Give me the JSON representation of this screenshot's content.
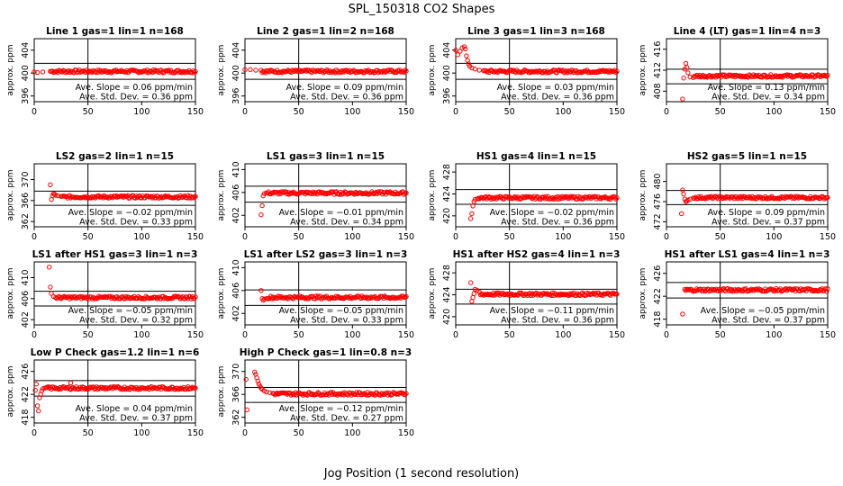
{
  "figure": {
    "title": "SPL_150318  CO2 Shapes",
    "xlabel": "Jog Position (1 second resolution)",
    "ylabel": "approx. ppm",
    "colors": {
      "points": "#ff0000",
      "frame": "#000000"
    }
  },
  "chart_data": [
    {
      "type": "scatter",
      "title": "Line 1 gas=1 lin=1 n=168",
      "xlim": [
        0,
        150
      ],
      "ylim": [
        395,
        406
      ],
      "xticks": [
        0,
        50,
        100,
        150
      ],
      "yticks": [
        396,
        400,
        404
      ],
      "hlines": [
        401.7,
        398.9
      ],
      "vline": 50,
      "series": [
        {
          "type": "scatter",
          "points": [
            [
              0,
              400.2
            ],
            [
              3,
              400.1
            ],
            [
              8,
              400.2
            ],
            [
              15,
              400.3
            ]
          ],
          "flat": {
            "from": 16,
            "to": 150,
            "y": 400.3
          }
        }
      ],
      "stats": [
        "Ave. Slope =  0.06  ppm/min",
        "Ave. Std. Dev. =  0.36  ppm"
      ]
    },
    {
      "type": "scatter",
      "title": "Line 2 gas=1 lin=2 n=168",
      "xlim": [
        0,
        150
      ],
      "ylim": [
        395,
        406
      ],
      "xticks": [
        0,
        50,
        100,
        150
      ],
      "yticks": [
        396,
        400,
        404
      ],
      "hlines": [
        401.7,
        398.9
      ],
      "vline": 50,
      "series": [
        {
          "type": "scatter",
          "points": [
            [
              0,
              400.6
            ],
            [
              5,
              400.6
            ],
            [
              10,
              400.5
            ],
            [
              15,
              400.5
            ]
          ],
          "flat": {
            "from": 16,
            "to": 150,
            "y": 400.3
          }
        }
      ],
      "stats": [
        "Ave. Slope =  0.09  ppm/min",
        "Ave. Std. Dev. =  0.36  ppm"
      ]
    },
    {
      "type": "scatter",
      "title": "Line 3 gas=1 lin=3 n=168",
      "xlim": [
        0,
        150
      ],
      "ylim": [
        395,
        406
      ],
      "xticks": [
        0,
        50,
        100,
        150
      ],
      "yticks": [
        396,
        400,
        404
      ],
      "hlines": [
        401.7,
        398.9
      ],
      "vline": 50,
      "series": [
        {
          "type": "scatter",
          "points": [
            [
              0,
              404
            ],
            [
              2,
              403.2
            ],
            [
              4,
              403.8
            ],
            [
              6,
              404.4
            ],
            [
              8,
              404.6
            ],
            [
              9,
              404.2
            ],
            [
              10,
              403
            ],
            [
              11,
              402.2
            ],
            [
              12,
              401.6
            ],
            [
              13,
              401.2
            ],
            [
              15,
              400.9
            ],
            [
              18,
              400.7
            ],
            [
              22,
              400.5
            ],
            [
              26,
              400.4
            ]
          ],
          "flat": {
            "from": 27,
            "to": 150,
            "y": 400.3
          }
        }
      ],
      "stats": [
        "Ave. Slope =  0.03  ppm/min",
        "Ave. Std. Dev. =  0.36  ppm"
      ]
    },
    {
      "type": "scatter",
      "title": "Line 4 (LT) gas=1 lin=4 n=3",
      "xlim": [
        0,
        150
      ],
      "ylim": [
        406,
        418
      ],
      "xticks": [
        0,
        50,
        100,
        150
      ],
      "yticks": [
        408,
        412,
        416
      ],
      "hlines": [
        412.2,
        409.4
      ],
      "vline": 50,
      "series": [
        {
          "type": "scatter",
          "points": [
            [
              15,
              406.5
            ],
            [
              16,
              410.5
            ],
            [
              17,
              412.2
            ],
            [
              18,
              413.3
            ],
            [
              19,
              412.5
            ],
            [
              20,
              411.5
            ],
            [
              22,
              410.7
            ],
            [
              25,
              410.6
            ]
          ],
          "flat": {
            "from": 26,
            "to": 150,
            "y": 410.9
          }
        }
      ],
      "stats": [
        "Ave. Slope =  0.13  ppm/min",
        "Ave. Std. Dev. =  0.34  ppm"
      ]
    },
    {
      "type": "scatter",
      "title": "LS2 gas=2 lin=1 n=15",
      "xlim": [
        0,
        150
      ],
      "ylim": [
        361,
        373
      ],
      "xticks": [
        0,
        50,
        100,
        150
      ],
      "yticks": [
        362,
        366,
        370
      ],
      "hlines": [
        367.8,
        365.1
      ],
      "vline": 50,
      "series": [
        {
          "type": "scatter",
          "points": [
            [
              15,
              369
            ],
            [
              16,
              366.2
            ],
            [
              17,
              366.9
            ],
            [
              18,
              367.3
            ],
            [
              19,
              367.2
            ],
            [
              20,
              367
            ],
            [
              22,
              366.9
            ],
            [
              25,
              366.8
            ]
          ],
          "flat": {
            "from": 26,
            "to": 150,
            "y": 366.7
          }
        }
      ],
      "stats": [
        "Ave. Slope = −0.02  ppm/min",
        "Ave. Std. Dev. =  0.33  ppm"
      ]
    },
    {
      "type": "scatter",
      "title": "LS1 gas=3 lin=1 n=15",
      "xlim": [
        0,
        150
      ],
      "ylim": [
        400,
        411
      ],
      "xticks": [
        0,
        50,
        100,
        150
      ],
      "yticks": [
        402,
        406,
        410
      ],
      "hlines": [
        407.1,
        404.3
      ],
      "vline": 50,
      "series": [
        {
          "type": "scatter",
          "points": [
            [
              15,
              402.1
            ],
            [
              16,
              403.7
            ],
            [
              17,
              405.4
            ],
            [
              18,
              405.8
            ],
            [
              20,
              405.9
            ]
          ],
          "flat": {
            "from": 21,
            "to": 150,
            "y": 405.9
          }
        }
      ],
      "stats": [
        "Ave. Slope = −0.01  ppm/min",
        "Ave. Std. Dev. =  0.34  ppm"
      ]
    },
    {
      "type": "scatter",
      "title": "HS1 gas=4 lin=1 n=15",
      "xlim": [
        0,
        150
      ],
      "ylim": [
        418,
        429.5
      ],
      "xticks": [
        0,
        50,
        100,
        150
      ],
      "yticks": [
        420,
        424,
        428
      ],
      "hlines": [
        424.8,
        422.1
      ],
      "vline": 50,
      "series": [
        {
          "type": "scatter",
          "points": [
            [
              14,
              419.5
            ],
            [
              15,
              420.4
            ],
            [
              16,
              421.8
            ],
            [
              17,
              422.6
            ],
            [
              18,
              423
            ],
            [
              20,
              423.1
            ]
          ],
          "flat": {
            "from": 21,
            "to": 150,
            "y": 423.3
          }
        }
      ],
      "stats": [
        "Ave. Slope = −0.02  ppm/min",
        "Ave. Std. Dev. =  0.36  ppm"
      ]
    },
    {
      "type": "scatter",
      "title": "HS2 gas=5 lin=1 n=15",
      "xlim": [
        0,
        150
      ],
      "ylim": [
        471,
        483.5
      ],
      "xticks": [
        0,
        50,
        100,
        150
      ],
      "yticks": [
        472,
        476,
        480
      ],
      "hlines": [
        478.2,
        475.4
      ],
      "vline": 50,
      "series": [
        {
          "type": "scatter",
          "points": [
            [
              14,
              473.6
            ],
            [
              15,
              478.3
            ],
            [
              16,
              477.5
            ],
            [
              17,
              476.5
            ],
            [
              18,
              476
            ],
            [
              19,
              476.1
            ],
            [
              20,
              476.3
            ],
            [
              22,
              476.5
            ],
            [
              25,
              476.7
            ]
          ],
          "flat": {
            "from": 26,
            "to": 150,
            "y": 476.8
          }
        }
      ],
      "stats": [
        "Ave. Slope =  0.09  ppm/min",
        "Ave. Std. Dev. =  0.37  ppm"
      ]
    },
    {
      "type": "scatter",
      "title": "LS1 after HS1 gas=3 lin=1 n=3",
      "xlim": [
        0,
        150
      ],
      "ylim": [
        401,
        413
      ],
      "xticks": [
        0,
        50,
        100,
        150
      ],
      "yticks": [
        402,
        406,
        410
      ],
      "hlines": [
        407.4,
        404.6
      ],
      "vline": 50,
      "series": [
        {
          "type": "scatter",
          "points": [
            [
              14,
              412
            ],
            [
              15,
              408.2
            ],
            [
              16,
              407
            ],
            [
              18,
              406.4
            ],
            [
              20,
              406.2
            ]
          ],
          "flat": {
            "from": 21,
            "to": 150,
            "y": 406.2
          }
        }
      ],
      "stats": [
        "Ave. Slope = −0.05  ppm/min",
        "Ave. Std. Dev. =  0.32  ppm"
      ]
    },
    {
      "type": "scatter",
      "title": "LS1 after LS2 gas=3 lin=1 n=3",
      "xlim": [
        0,
        150
      ],
      "ylim": [
        400,
        411
      ],
      "xticks": [
        0,
        50,
        100,
        150
      ],
      "yticks": [
        402,
        406,
        410
      ],
      "hlines": [
        406.1,
        403.4
      ],
      "vline": 50,
      "series": [
        {
          "type": "scatter",
          "points": [
            [
              15,
              406
            ],
            [
              16,
              404.6
            ],
            [
              17,
              404.3
            ],
            [
              18,
              404.5
            ],
            [
              20,
              404.6
            ]
          ],
          "flat": {
            "from": 21,
            "to": 150,
            "y": 404.8
          }
        }
      ],
      "stats": [
        "Ave. Slope = −0.05  ppm/min",
        "Ave. Std. Dev. =  0.33  ppm"
      ]
    },
    {
      "type": "scatter",
      "title": "HS1 after HS2 gas=4 lin=1 n=3",
      "xlim": [
        0,
        150
      ],
      "ylim": [
        418.5,
        430
      ],
      "xticks": [
        0,
        50,
        100,
        150
      ],
      "yticks": [
        420,
        424,
        428
      ],
      "hlines": [
        425,
        422.3
      ],
      "vline": 50,
      "series": [
        {
          "type": "scatter",
          "points": [
            [
              14,
              426.2
            ],
            [
              15,
              422.8
            ],
            [
              16,
              423.5
            ],
            [
              17,
              424.2
            ],
            [
              18,
              425
            ],
            [
              20,
              424.8
            ],
            [
              22,
              424.5
            ]
          ],
          "flat": {
            "from": 23,
            "to": 150,
            "y": 424.1
          }
        }
      ],
      "stats": [
        "Ave. Slope = −0.11  ppm/min",
        "Ave. Std. Dev. =  0.36  ppm"
      ]
    },
    {
      "type": "scatter",
      "title": "HS1 after LS1 gas=4 lin=1 n=3",
      "xlim": [
        0,
        150
      ],
      "ylim": [
        417,
        428
      ],
      "xticks": [
        0,
        50,
        100,
        150
      ],
      "yticks": [
        418,
        422,
        426
      ],
      "hlines": [
        424.4,
        421.7
      ],
      "vline": 50,
      "series": [
        {
          "type": "scatter",
          "points": [
            [
              15,
              418.9
            ],
            [
              17,
              423.2
            ],
            [
              18,
              423
            ]
          ],
          "flat": {
            "from": 19,
            "to": 150,
            "y": 423.1
          }
        }
      ],
      "stats": [
        "Ave. Slope = −0.05  ppm/min",
        "Ave. Std. Dev. =  0.37  ppm"
      ]
    },
    {
      "type": "scatter",
      "title": "Low P Check gas=1.2 lin=1 n=6",
      "xlim": [
        0,
        150
      ],
      "ylim": [
        417,
        428
      ],
      "xticks": [
        0,
        50,
        100,
        150
      ],
      "yticks": [
        418,
        422,
        426
      ],
      "hlines": [
        424.4,
        421.7
      ],
      "vline": 50,
      "series": [
        {
          "type": "scatter",
          "points": [
            [
              1,
              422.7
            ],
            [
              2,
              423.8
            ],
            [
              3,
              420
            ],
            [
              4,
              419.1
            ],
            [
              5,
              421.4
            ],
            [
              6,
              422
            ],
            [
              7,
              422.6
            ],
            [
              8,
              423
            ],
            [
              10,
              423.1
            ],
            [
              34,
              424
            ]
          ],
          "flat": {
            "from": 11,
            "to": 150,
            "y": 423.1
          }
        }
      ],
      "stats": [
        "Ave. Slope =  0.04  ppm/min",
        "Ave. Std. Dev. =  0.37  ppm"
      ]
    },
    {
      "type": "scatter",
      "title": "High P Check gas=1 lin=0.8 n=3",
      "xlim": [
        0,
        150
      ],
      "ylim": [
        361,
        372
      ],
      "xticks": [
        0,
        50,
        100,
        150
      ],
      "yticks": [
        362,
        366,
        370
      ],
      "hlines": [
        367.2,
        364.6
      ],
      "vline": 50,
      "series": [
        {
          "type": "scatter",
          "points": [
            [
              1,
              368.6
            ],
            [
              2,
              363.3
            ],
            [
              9,
              369.9
            ],
            [
              10,
              369.5
            ],
            [
              11,
              368.9
            ],
            [
              12,
              368.3
            ],
            [
              13,
              367.8
            ],
            [
              14,
              367.4
            ],
            [
              15,
              367.1
            ],
            [
              16,
              366.9
            ],
            [
              18,
              366.6
            ],
            [
              20,
              366.4
            ],
            [
              23,
              366.3
            ],
            [
              26,
              366.2
            ]
          ],
          "flat": {
            "from": 27,
            "to": 150,
            "y": 366.1
          }
        }
      ],
      "stats": [
        "Ave. Slope = −0.12  ppm/min",
        "Ave. Std. Dev. =  0.27  ppm"
      ]
    }
  ]
}
